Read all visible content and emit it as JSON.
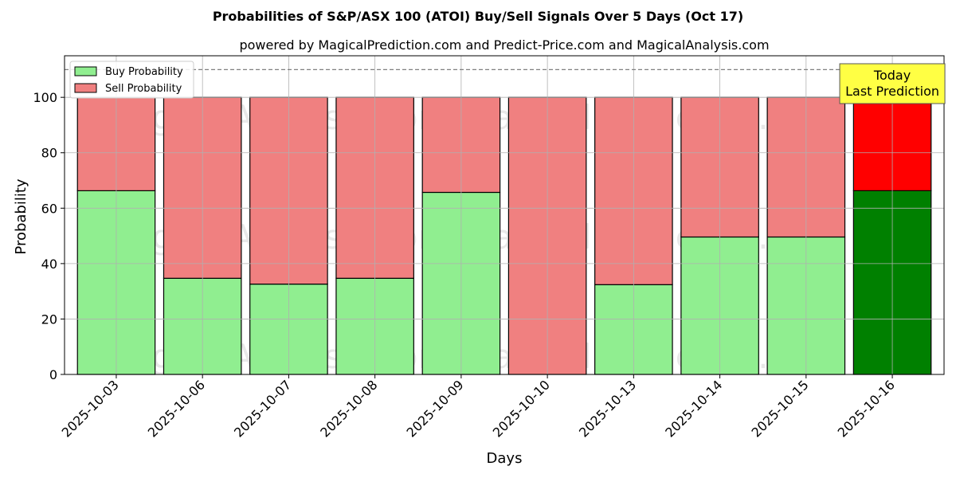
{
  "chart_data": {
    "type": "bar",
    "stacked": true,
    "title": "Probabilities of S&P/ASX 100 (ATOI) Buy/Sell Signals Over 5 Days (Oct 17)",
    "subtitle": "powered by MagicalPrediction.com and Predict-Price.com and MagicalAnalysis.com",
    "xlabel": "Days",
    "ylabel": "Probability",
    "ylim": [
      0,
      115
    ],
    "yticks": [
      0,
      20,
      40,
      60,
      80,
      100
    ],
    "grid": true,
    "reference_line": 110,
    "categories": [
      "2025-10-03",
      "2025-10-06",
      "2025-10-07",
      "2025-10-08",
      "2025-10-09",
      "2025-10-10",
      "2025-10-13",
      "2025-10-14",
      "2025-10-15",
      "2025-10-16"
    ],
    "series": [
      {
        "name": "Buy Probability",
        "color": "#90ee90",
        "values": [
          66.3,
          34.7,
          32.6,
          34.7,
          65.7,
          0,
          32.4,
          49.6,
          49.6,
          66.3
        ]
      },
      {
        "name": "Sell Probability",
        "color": "#f08080",
        "values": [
          33.7,
          65.3,
          67.4,
          65.3,
          34.3,
          100,
          67.6,
          50.4,
          50.4,
          33.7
        ]
      }
    ],
    "highlight": {
      "index": 9,
      "buy_color": "#008000",
      "sell_color": "#ff0000"
    },
    "legend": {
      "position": "top-left",
      "entries": [
        "Buy Probability",
        "Sell Probability"
      ]
    },
    "annotation": {
      "lines": [
        "Today",
        "Last Prediction"
      ],
      "color": "#ffff44"
    },
    "watermarks": [
      "MagicalAnalysis.com",
      "MagicalPrediction.com"
    ]
  }
}
